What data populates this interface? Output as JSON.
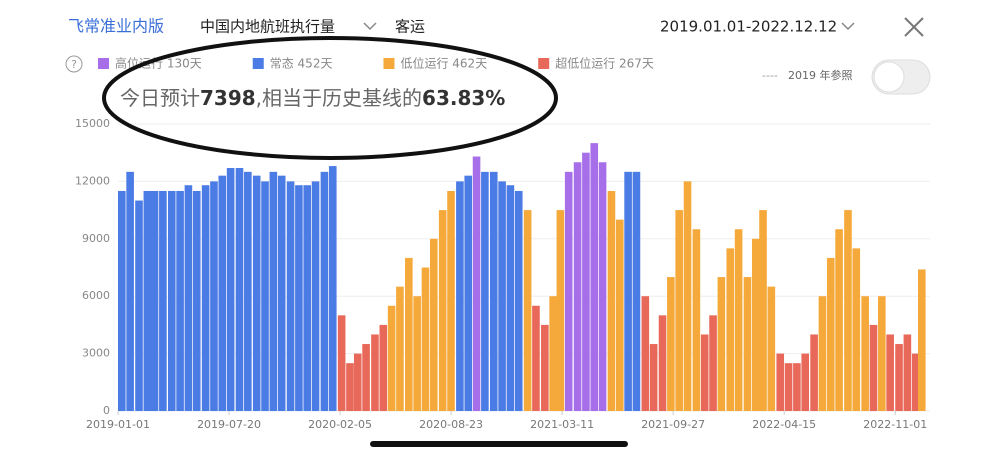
{
  "header": {
    "brand": "飞常准业内版",
    "metric": "中国内地航班执行量",
    "mode": "客运",
    "date_range": "2019.01.01-2022.12.12",
    "help": "?",
    "reference": "2019 年参照"
  },
  "summary": {
    "prefix": "今日预计",
    "today": "7398",
    "middle": ",相当于历史基线的",
    "ratio": "63.83%"
  },
  "chart_data": {
    "type": "bar",
    "legend": [
      {
        "name": "高位运行 130天",
        "color": "#a66ee8"
      },
      {
        "name": "常态 452天",
        "color": "#4b7be5"
      },
      {
        "name": "低位运行 462天",
        "color": "#f5a93a"
      },
      {
        "name": "超低位运行 267天",
        "color": "#e8695a"
      }
    ],
    "x": [
      "2019-01-01",
      "2019-01-16",
      "2019-02-01",
      "2019-02-16",
      "2019-03-01",
      "2019-03-16",
      "2019-04-01",
      "2019-04-16",
      "2019-05-01",
      "2019-05-16",
      "2019-06-01",
      "2019-06-16",
      "2019-07-01",
      "2019-07-16",
      "2019-08-01",
      "2019-08-16",
      "2019-09-01",
      "2019-09-16",
      "2019-10-01",
      "2019-10-16",
      "2019-11-01",
      "2019-11-16",
      "2019-12-01",
      "2019-12-16",
      "2020-01-01",
      "2020-01-16",
      "2020-02-01",
      "2020-02-16",
      "2020-03-01",
      "2020-03-16",
      "2020-04-01",
      "2020-04-16",
      "2020-05-01",
      "2020-05-16",
      "2020-06-01",
      "2020-06-16",
      "2020-07-01",
      "2020-07-16",
      "2020-08-01",
      "2020-08-16",
      "2020-09-01",
      "2020-09-16",
      "2020-10-01",
      "2020-10-16",
      "2020-11-01",
      "2020-11-16",
      "2020-12-01",
      "2020-12-16",
      "2021-01-01",
      "2021-01-16",
      "2021-02-01",
      "2021-02-16",
      "2021-03-01",
      "2021-03-16",
      "2021-04-01",
      "2021-04-16",
      "2021-05-01",
      "2021-05-16",
      "2021-06-01",
      "2021-06-16",
      "2021-07-01",
      "2021-07-16",
      "2021-08-01",
      "2021-08-16",
      "2021-09-01",
      "2021-09-16",
      "2021-10-01",
      "2021-10-16",
      "2021-11-01",
      "2021-11-16",
      "2021-12-01",
      "2021-12-16",
      "2022-01-01",
      "2022-01-16",
      "2022-02-01",
      "2022-02-16",
      "2022-03-01",
      "2022-03-16",
      "2022-04-01",
      "2022-04-16",
      "2022-05-01",
      "2022-05-16",
      "2022-06-01",
      "2022-06-16",
      "2022-07-01",
      "2022-07-16",
      "2022-08-01",
      "2022-08-16",
      "2022-09-01",
      "2022-09-16",
      "2022-10-01",
      "2022-10-16",
      "2022-11-01",
      "2022-11-16",
      "2022-12-01",
      "2022-12-12"
    ],
    "values": [
      11500,
      12500,
      11000,
      11500,
      11500,
      11500,
      11500,
      11500,
      11800,
      11500,
      11800,
      12000,
      12300,
      12700,
      12700,
      12500,
      12300,
      12000,
      12500,
      12300,
      12000,
      11800,
      11800,
      12000,
      12500,
      12800,
      5000,
      2500,
      3000,
      3500,
      4000,
      4500,
      5500,
      6500,
      8000,
      6000,
      7500,
      9000,
      10500,
      11500,
      12000,
      12300,
      13300,
      12500,
      12500,
      12000,
      11800,
      11500,
      10500,
      5500,
      4500,
      6000,
      10500,
      12500,
      13000,
      13500,
      14000,
      13000,
      11500,
      10000,
      12500,
      12500,
      6000,
      3500,
      5000,
      7000,
      10500,
      12000,
      9500,
      4000,
      5000,
      7000,
      8500,
      9500,
      7000,
      9000,
      10500,
      6500,
      3000,
      2500,
      2500,
      3000,
      4000,
      6000,
      8000,
      9500,
      10500,
      8500,
      6000,
      4500,
      6000,
      4000,
      3500,
      4000,
      3000,
      7398
    ],
    "colors": [
      "#4b7be5",
      "#4b7be5",
      "#4b7be5",
      "#4b7be5",
      "#4b7be5",
      "#4b7be5",
      "#4b7be5",
      "#4b7be5",
      "#4b7be5",
      "#4b7be5",
      "#4b7be5",
      "#4b7be5",
      "#4b7be5",
      "#4b7be5",
      "#4b7be5",
      "#4b7be5",
      "#4b7be5",
      "#4b7be5",
      "#4b7be5",
      "#4b7be5",
      "#4b7be5",
      "#4b7be5",
      "#4b7be5",
      "#4b7be5",
      "#4b7be5",
      "#4b7be5",
      "#e8695a",
      "#e8695a",
      "#e8695a",
      "#e8695a",
      "#e8695a",
      "#e8695a",
      "#f5a93a",
      "#f5a93a",
      "#f5a93a",
      "#f5a93a",
      "#f5a93a",
      "#f5a93a",
      "#f5a93a",
      "#f5a93a",
      "#4b7be5",
      "#4b7be5",
      "#a66ee8",
      "#4b7be5",
      "#4b7be5",
      "#4b7be5",
      "#4b7be5",
      "#4b7be5",
      "#f5a93a",
      "#e8695a",
      "#e8695a",
      "#f5a93a",
      "#f5a93a",
      "#a66ee8",
      "#a66ee8",
      "#a66ee8",
      "#a66ee8",
      "#a66ee8",
      "#f5a93a",
      "#f5a93a",
      "#4b7be5",
      "#4b7be5",
      "#e8695a",
      "#e8695a",
      "#e8695a",
      "#f5a93a",
      "#f5a93a",
      "#f5a93a",
      "#f5a93a",
      "#e8695a",
      "#e8695a",
      "#f5a93a",
      "#f5a93a",
      "#f5a93a",
      "#f5a93a",
      "#f5a93a",
      "#f5a93a",
      "#f5a93a",
      "#e8695a",
      "#e8695a",
      "#e8695a",
      "#e8695a",
      "#e8695a",
      "#f5a93a",
      "#f5a93a",
      "#f5a93a",
      "#f5a93a",
      "#f5a93a",
      "#f5a93a",
      "#e8695a",
      "#f5a93a",
      "#e8695a",
      "#e8695a",
      "#e8695a",
      "#e8695a",
      "#f5a93a"
    ],
    "xlim": [
      "2019-01-01",
      "2022-12-12"
    ],
    "xticks": [
      "2019-01-01",
      "2019-07-20",
      "2020-02-05",
      "2020-08-23",
      "2021-03-11",
      "2021-09-27",
      "2022-04-15",
      "2022-11-01"
    ],
    "ylim": [
      0,
      15000
    ],
    "yticks": [
      0,
      3000,
      6000,
      9000,
      12000,
      15000
    ],
    "grid": true
  }
}
